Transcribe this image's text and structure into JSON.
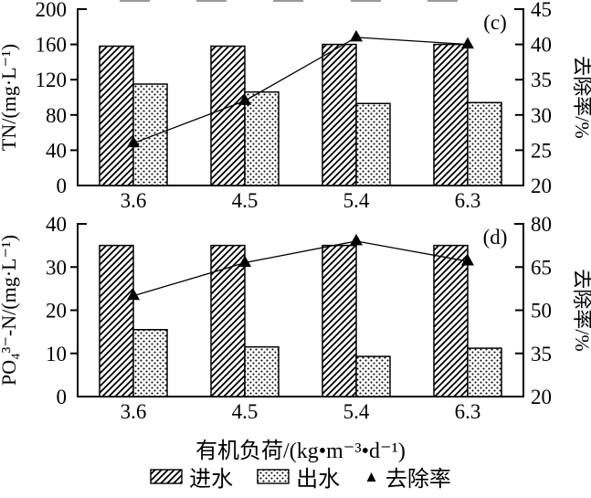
{
  "figure": {
    "background": "#ffffff",
    "ink_color": "#000000"
  },
  "xaxis": {
    "title": "有机负荷/(kg•m⁻³•d⁻¹)",
    "categories": [
      "3.6",
      "4.5",
      "5.4",
      "6.3"
    ]
  },
  "legend": {
    "items": [
      {
        "label": "进水",
        "swatch": "hatched-bar"
      },
      {
        "label": "出水",
        "swatch": "dotted-bar"
      },
      {
        "label": "去除率",
        "swatch": "filled-triangle"
      }
    ]
  },
  "chart_data": [
    {
      "type": "bar+line",
      "panel_label": "(c)",
      "categories": [
        "3.6",
        "4.5",
        "5.4",
        "6.3"
      ],
      "left_axis": {
        "label": "TN/(mg·L⁻¹)",
        "min": 0,
        "max": 200,
        "ticks": [
          0,
          40,
          80,
          120,
          160,
          200
        ]
      },
      "right_axis": {
        "label": "去除率/%",
        "min": 20,
        "max": 45,
        "ticks": [
          20,
          25,
          30,
          35,
          40,
          45
        ]
      },
      "bar_series": [
        {
          "name": "进水",
          "pattern": "hatch",
          "axis": "left",
          "values": [
            158,
            158,
            160,
            160
          ]
        },
        {
          "name": "出水",
          "pattern": "dots",
          "axis": "left",
          "values": [
            115,
            106,
            93,
            94
          ]
        }
      ],
      "line_series": [
        {
          "name": "去除率",
          "axis": "right",
          "marker": "triangle",
          "values": [
            26,
            32,
            41,
            40
          ]
        }
      ]
    },
    {
      "type": "bar+line",
      "panel_label": "(d)",
      "categories": [
        "3.6",
        "4.5",
        "5.4",
        "6.3"
      ],
      "left_axis": {
        "label": "PO₄³⁻-N/(mg·L⁻¹)",
        "min": 0,
        "max": 40,
        "ticks": [
          0,
          10,
          20,
          30,
          40
        ]
      },
      "right_axis": {
        "label": "去除率/%",
        "min": 20,
        "max": 80,
        "ticks": [
          20,
          35,
          50,
          65,
          80
        ]
      },
      "bar_series": [
        {
          "name": "进水",
          "pattern": "hatch",
          "axis": "left",
          "values": [
            35,
            35,
            35,
            35
          ]
        },
        {
          "name": "出水",
          "pattern": "dots",
          "axis": "left",
          "values": [
            15.5,
            11.5,
            9.3,
            11.2
          ]
        }
      ],
      "line_series": [
        {
          "name": "去除率",
          "axis": "right",
          "marker": "triangle",
          "values": [
            55,
            66.5,
            74,
            67
          ]
        }
      ]
    }
  ]
}
